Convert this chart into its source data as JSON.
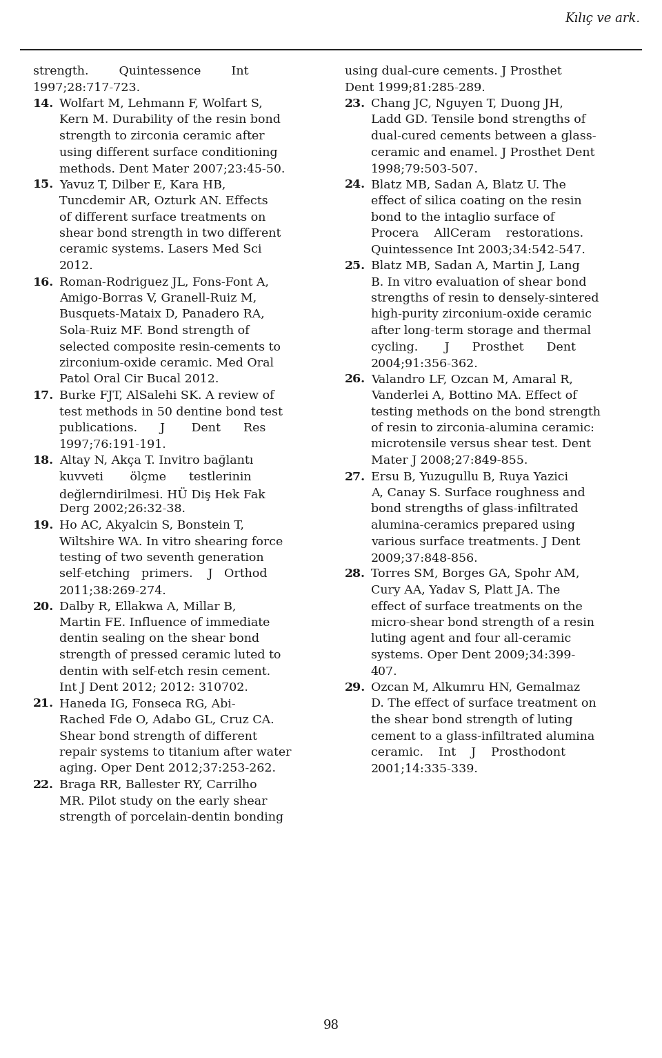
{
  "header_right": "Kılıç ve ark.",
  "page_number": "98",
  "background_color": "#ffffff",
  "text_color": "#1a1a1a",
  "line_color": "#222222",
  "left_column_blocks": [
    {
      "number": "",
      "indent": false,
      "lines": [
        "strength.        Quintessence        Int",
        "1997;28:717-723."
      ]
    },
    {
      "number": "14.",
      "indent": true,
      "lines": [
        "Wolfart M, Lehmann F, Wolfart S,",
        "Kern M. Durability of the resin bond",
        "strength to zirconia ceramic after",
        "using different surface conditioning",
        "methods. Dent Mater 2007;23:45-50."
      ]
    },
    {
      "number": "15.",
      "indent": true,
      "lines": [
        "Yavuz T, Dilber E, Kara HB,",
        "Tuncdemir AR, Ozturk AN. Effects",
        "of different surface treatments on",
        "shear bond strength in two different",
        "ceramic systems. Lasers Med Sci",
        "2012."
      ]
    },
    {
      "number": "16.",
      "indent": true,
      "lines": [
        "Roman-Rodriguez JL, Fons-Font A,",
        "Amigo-Borras V, Granell-Ruiz M,",
        "Busquets-Mataix D, Panadero RA,",
        "Sola-Ruiz MF. Bond strength of",
        "selected composite resin-cements to",
        "zirconium-oxide ceramic. Med Oral",
        "Patol Oral Cir Bucal 2012."
      ]
    },
    {
      "number": "17.",
      "indent": true,
      "lines": [
        "Burke FJT, AlSalehi SK. A review of",
        "test methods in 50 dentine bond test",
        "publications.      J       Dent      Res",
        "1997;76:191-191."
      ]
    },
    {
      "number": "18.",
      "indent": true,
      "lines": [
        "Altay N, Akça T. Invitro bağlantı",
        "kuvveti       ölçme      testlerinin",
        "değlerndirilmesi. HÜ Diş Hek Fak",
        "Derg 2002;26:32-38."
      ]
    },
    {
      "number": "19.",
      "indent": true,
      "lines": [
        "Ho AC, Akyalcin S, Bonstein T,",
        "Wiltshire WA. In vitro shearing force",
        "testing of two seventh generation",
        "self-etching   primers.    J   Orthod",
        "2011;38:269-274."
      ]
    },
    {
      "number": "20.",
      "indent": true,
      "lines": [
        "Dalby R, Ellakwa A, Millar B,",
        "Martin FE. Influence of immediate",
        "dentin sealing on the shear bond",
        "strength of pressed ceramic luted to",
        "dentin with self-etch resin cement.",
        "Int J Dent 2012; 2012: 310702."
      ]
    },
    {
      "number": "21.",
      "indent": true,
      "lines": [
        "Haneda IG, Fonseca RG, Abi-",
        "Rached Fde O, Adabo GL, Cruz CA.",
        "Shear bond strength of different",
        "repair systems to titanium after water",
        "aging. Oper Dent 2012;37:253-262."
      ]
    },
    {
      "number": "22.",
      "indent": true,
      "lines": [
        "Braga RR, Ballester RY, Carrilho",
        "MR. Pilot study on the early shear",
        "strength of porcelain-dentin bonding"
      ]
    }
  ],
  "right_column_blocks": [
    {
      "number": "",
      "indent": false,
      "lines": [
        "using dual-cure cements. J Prosthet",
        "Dent 1999;81:285-289."
      ]
    },
    {
      "number": "23.",
      "indent": true,
      "lines": [
        "Chang JC, Nguyen T, Duong JH,",
        "Ladd GD. Tensile bond strengths of",
        "dual-cured cements between a glass-",
        "ceramic and enamel. J Prosthet Dent",
        "1998;79:503-507."
      ]
    },
    {
      "number": "24.",
      "indent": true,
      "lines": [
        "Blatz MB, Sadan A, Blatz U. The",
        "effect of silica coating on the resin",
        "bond to the intaglio surface of",
        "Procera    AllCeram    restorations.",
        "Quintessence Int 2003;34:542-547."
      ]
    },
    {
      "number": "25.",
      "indent": true,
      "lines": [
        "Blatz MB, Sadan A, Martin J, Lang",
        "B. In vitro evaluation of shear bond",
        "strengths of resin to densely-sintered",
        "high-purity zirconium-oxide ceramic",
        "after long-term storage and thermal",
        "cycling.       J      Prosthet      Dent",
        "2004;91:356-362."
      ]
    },
    {
      "number": "26.",
      "indent": true,
      "lines": [
        "Valandro LF, Ozcan M, Amaral R,",
        "Vanderlei A, Bottino MA. Effect of",
        "testing methods on the bond strength",
        "of resin to zirconia-alumina ceramic:",
        "microtensile versus shear test. Dent",
        "Mater J 2008;27:849-855."
      ]
    },
    {
      "number": "27.",
      "indent": true,
      "lines": [
        "Ersu B, Yuzugullu B, Ruya Yazici",
        "A, Canay S. Surface roughness and",
        "bond strengths of glass-infiltrated",
        "alumina-ceramics prepared using",
        "various surface treatments. J Dent",
        "2009;37:848-856."
      ]
    },
    {
      "number": "28.",
      "indent": true,
      "lines": [
        "Torres SM, Borges GA, Spohr AM,",
        "Cury AA, Yadav S, Platt JA. The",
        "effect of surface treatments on the",
        "micro-shear bond strength of a resin",
        "luting agent and four all-ceramic",
        "systems. Oper Dent 2009;34:399-",
        "407."
      ]
    },
    {
      "number": "29.",
      "indent": true,
      "lines": [
        "Ozcan M, Alkumru HN, Gemalmaz",
        "D. The effect of surface treatment on",
        "the shear bond strength of luting",
        "cement to a glass-infiltrated alumina",
        "ceramic.    Int    J    Prosthodont",
        "2001;14:335-339."
      ]
    }
  ]
}
